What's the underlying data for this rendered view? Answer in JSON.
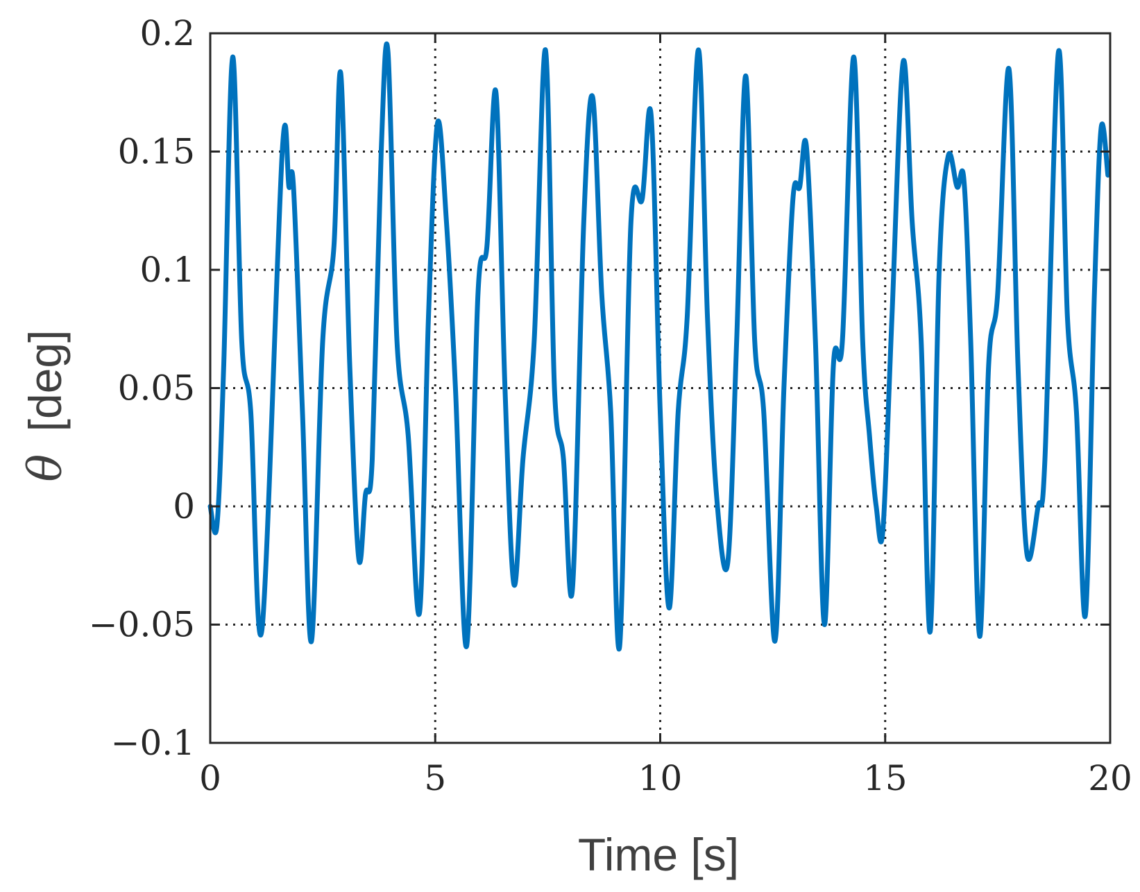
{
  "chart_data": {
    "type": "line",
    "title": "",
    "xlabel": "Time [s]",
    "ylabel_symbol": "θ",
    "ylabel_unit": "[deg]",
    "xlim": [
      0,
      20
    ],
    "ylim": [
      -0.1,
      0.2
    ],
    "x_ticks": [
      0,
      5,
      10,
      15,
      20
    ],
    "x_tick_labels": [
      "0",
      "5",
      "10",
      "15",
      "20"
    ],
    "y_ticks": [
      -0.1,
      -0.05,
      0,
      0.05,
      0.1,
      0.15,
      0.2
    ],
    "y_tick_labels": [
      "−0.1",
      "−0.05",
      "0",
      "0.05",
      "0.1",
      "0.15",
      "0.2"
    ],
    "grid": true,
    "legend": "none",
    "series": [
      {
        "color": "#0072BD",
        "x": [
          0,
          0.15,
          0.3,
          0.5,
          0.7,
          0.9,
          1.15,
          1.6,
          1.75,
          1.85,
          2.05,
          2.25,
          2.5,
          2.75,
          2.9,
          3.1,
          3.3,
          3.45,
          3.6,
          3.8,
          3.95,
          4.15,
          4.4,
          4.65,
          4.85,
          5.05,
          5.25,
          5.45,
          5.7,
          5.95,
          6.15,
          6.35,
          6.55,
          6.75,
          6.95,
          7.2,
          7.45,
          7.65,
          7.85,
          8.05,
          8.3,
          8.5,
          8.7,
          8.9,
          9.1,
          9.35,
          9.6,
          9.8,
          10.0,
          10.2,
          10.4,
          10.6,
          10.85,
          11.05,
          11.25,
          11.5,
          11.7,
          11.9,
          12.1,
          12.3,
          12.55,
          12.75,
          12.95,
          13.1,
          13.25,
          13.45,
          13.65,
          13.85,
          14.05,
          14.3,
          14.5,
          14.65,
          14.8,
          14.95,
          15.15,
          15.4,
          15.6,
          15.8,
          16.0,
          16.2,
          16.4,
          16.6,
          16.75,
          16.9,
          17.1,
          17.3,
          17.5,
          17.75,
          17.95,
          18.15,
          18.4,
          18.55,
          18.85,
          19.05,
          19.25,
          19.45,
          19.65,
          19.8,
          19.95
        ],
        "y": [
          0,
          -0.008,
          0.06,
          0.19,
          0.07,
          0.04,
          -0.052,
          0.15,
          0.135,
          0.135,
          0.04,
          -0.057,
          0.07,
          0.11,
          0.183,
          0.06,
          -0.022,
          0.005,
          0.02,
          0.15,
          0.192,
          0.07,
          0.03,
          -0.045,
          0.08,
          0.162,
          0.12,
          0.05,
          -0.059,
          0.09,
          0.11,
          0.175,
          0.05,
          -0.033,
          0.02,
          0.07,
          0.193,
          0.05,
          0.02,
          -0.035,
          0.12,
          0.173,
          0.09,
          0.04,
          -0.059,
          0.12,
          0.13,
          0.165,
          0.04,
          -0.043,
          0.04,
          0.08,
          0.193,
          0.08,
          0.005,
          -0.024,
          0.07,
          0.182,
          0.07,
          0.04,
          -0.057,
          0.05,
          0.13,
          0.135,
          0.152,
          0.07,
          -0.05,
          0.06,
          0.07,
          0.19,
          0.07,
          0.03,
          0.0,
          -0.01,
          0.08,
          0.188,
          0.12,
          0.07,
          -0.053,
          0.1,
          0.148,
          0.135,
          0.138,
          0.07,
          -0.055,
          0.06,
          0.09,
          0.185,
          0.06,
          -0.02,
          0.0,
          0.02,
          0.192,
          0.08,
          0.04,
          -0.046,
          0.09,
          0.16,
          0.14
        ]
      }
    ]
  }
}
